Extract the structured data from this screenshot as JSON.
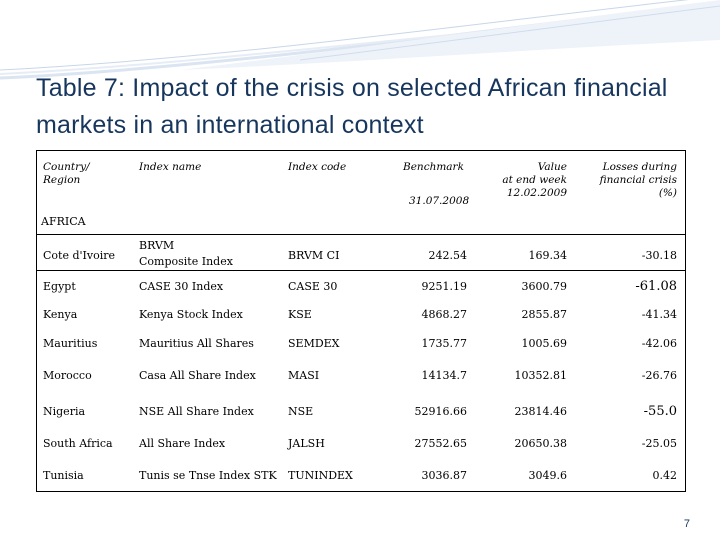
{
  "slide": {
    "title": "Table 7: Impact of the crisis on selected African financial markets in an international context",
    "page_number": "7"
  },
  "table": {
    "headers": {
      "country": "Country/\nRegion",
      "index_name": "Index name",
      "index_code": "Index code",
      "benchmark": "Benchmark",
      "benchmark_date": "31.07.2008",
      "value": "Value\nat end week\n12.02.2009",
      "losses": "Losses during\nfinancial crisis\n(%)"
    },
    "section_label": "AFRICA",
    "rows": [
      {
        "country": "Cote d'Ivoire",
        "name_line1": "BRVM",
        "name_line2": "Composite Index",
        "code": "BRVM CI",
        "benchmark": "242.54",
        "value": "169.34",
        "loss": "-30.18"
      },
      {
        "country": "Egypt",
        "name": "CASE 30 Index",
        "code": "CASE 30",
        "benchmark": "9251.19",
        "value": "3600.79",
        "loss": "-61.08"
      },
      {
        "country": "Kenya",
        "name": "Kenya Stock Index",
        "code": "KSE",
        "benchmark": "4868.27",
        "value": "2855.87",
        "loss": "-41.34"
      },
      {
        "country": "Mauritius",
        "name": "Mauritius All Shares",
        "code": "SEMDEX",
        "benchmark": "1735.77",
        "value": "1005.69",
        "loss": "-42.06"
      },
      {
        "country": "Morocco",
        "name": "Casa All Share Index",
        "code": "MASI",
        "benchmark": "14134.7",
        "value": "10352.81",
        "loss": "-26.76"
      },
      {
        "country": "Nigeria",
        "name": "NSE All Share Index",
        "code": "NSE",
        "benchmark": "52916.66",
        "value": "23814.46",
        "loss": "-55.0"
      },
      {
        "country": "South Africa",
        "name": "All Share Index",
        "code": "JALSH",
        "benchmark": "27552.65",
        "value": "20650.38",
        "loss": "-25.05"
      },
      {
        "country": "Tunisia",
        "name": "Tunis se Tnse Index STK",
        "code": "TUNINDEX",
        "benchmark": "3036.87",
        "value": "3049.6",
        "loss": "0.42"
      }
    ]
  }
}
